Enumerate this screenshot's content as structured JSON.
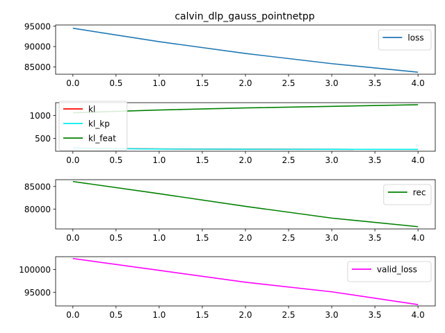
{
  "title": "calvin_dlp_gauss_pointnetpp",
  "chart_data": [
    {
      "type": "line",
      "x": [
        0,
        1,
        2,
        3,
        4
      ],
      "xticks": [
        "0.0",
        "0.5",
        "1.0",
        "1.5",
        "2.0",
        "2.5",
        "3.0",
        "3.5",
        "4.0"
      ],
      "xlim": [
        -0.2,
        4.2
      ],
      "ylim": [
        83200,
        95300
      ],
      "yticks": [
        95000,
        90000,
        85000
      ],
      "ytick_labels": [
        "95000",
        "90000",
        "85000"
      ],
      "legend_position": "upper right",
      "series": [
        {
          "name": "loss",
          "color": "#1f77b4",
          "values": [
            94500,
            91200,
            88300,
            85800,
            83700
          ]
        }
      ]
    },
    {
      "type": "line",
      "x": [
        0,
        1,
        2,
        3,
        4
      ],
      "xticks": [
        "0.0",
        "0.5",
        "1.0",
        "1.5",
        "2.0",
        "2.5",
        "3.0",
        "3.5",
        "4.0"
      ],
      "xlim": [
        -0.2,
        4.2
      ],
      "ylim": [
        220,
        1280
      ],
      "yticks": [
        1000,
        500
      ],
      "ytick_labels": [
        "1000",
        "500"
      ],
      "legend_position": "upper left",
      "series": [
        {
          "name": "kl",
          "color": "#ff0000",
          "values": [
            290,
            270,
            265,
            262,
            260
          ]
        },
        {
          "name": "kl_kp",
          "color": "#00eeee",
          "values": [
            285,
            268,
            264,
            262,
            260
          ]
        },
        {
          "name": "kl_feat",
          "color": "#008000",
          "values": [
            1060,
            1120,
            1165,
            1200,
            1235
          ]
        }
      ]
    },
    {
      "type": "line",
      "x": [
        0,
        1,
        2,
        3,
        4
      ],
      "xticks": [
        "0.0",
        "0.5",
        "1.0",
        "1.5",
        "2.0",
        "2.5",
        "3.0",
        "3.5",
        "4.0"
      ],
      "xlim": [
        -0.2,
        4.2
      ],
      "ylim": [
        75600,
        86500
      ],
      "yticks": [
        85000,
        80000
      ],
      "ytick_labels": [
        "85000",
        "80000"
      ],
      "legend_position": "upper right",
      "series": [
        {
          "name": "rec",
          "color": "#008000",
          "values": [
            86100,
            83400,
            80600,
            78000,
            76100
          ]
        }
      ]
    },
    {
      "type": "line",
      "x": [
        0,
        1,
        2,
        3,
        4
      ],
      "xticks": [
        "0.0",
        "0.5",
        "1.0",
        "1.5",
        "2.0",
        "2.5",
        "3.0",
        "3.5",
        "4.0"
      ],
      "xlim": [
        -0.2,
        4.2
      ],
      "ylim": [
        92000,
        102800
      ],
      "yticks": [
        100000,
        95000
      ],
      "ytick_labels": [
        "100000",
        "95000"
      ],
      "legend_position": "upper right",
      "series": [
        {
          "name": "valid_loss",
          "color": "#ff00ff",
          "values": [
            102400,
            99800,
            97200,
            95100,
            92300
          ]
        }
      ]
    }
  ]
}
